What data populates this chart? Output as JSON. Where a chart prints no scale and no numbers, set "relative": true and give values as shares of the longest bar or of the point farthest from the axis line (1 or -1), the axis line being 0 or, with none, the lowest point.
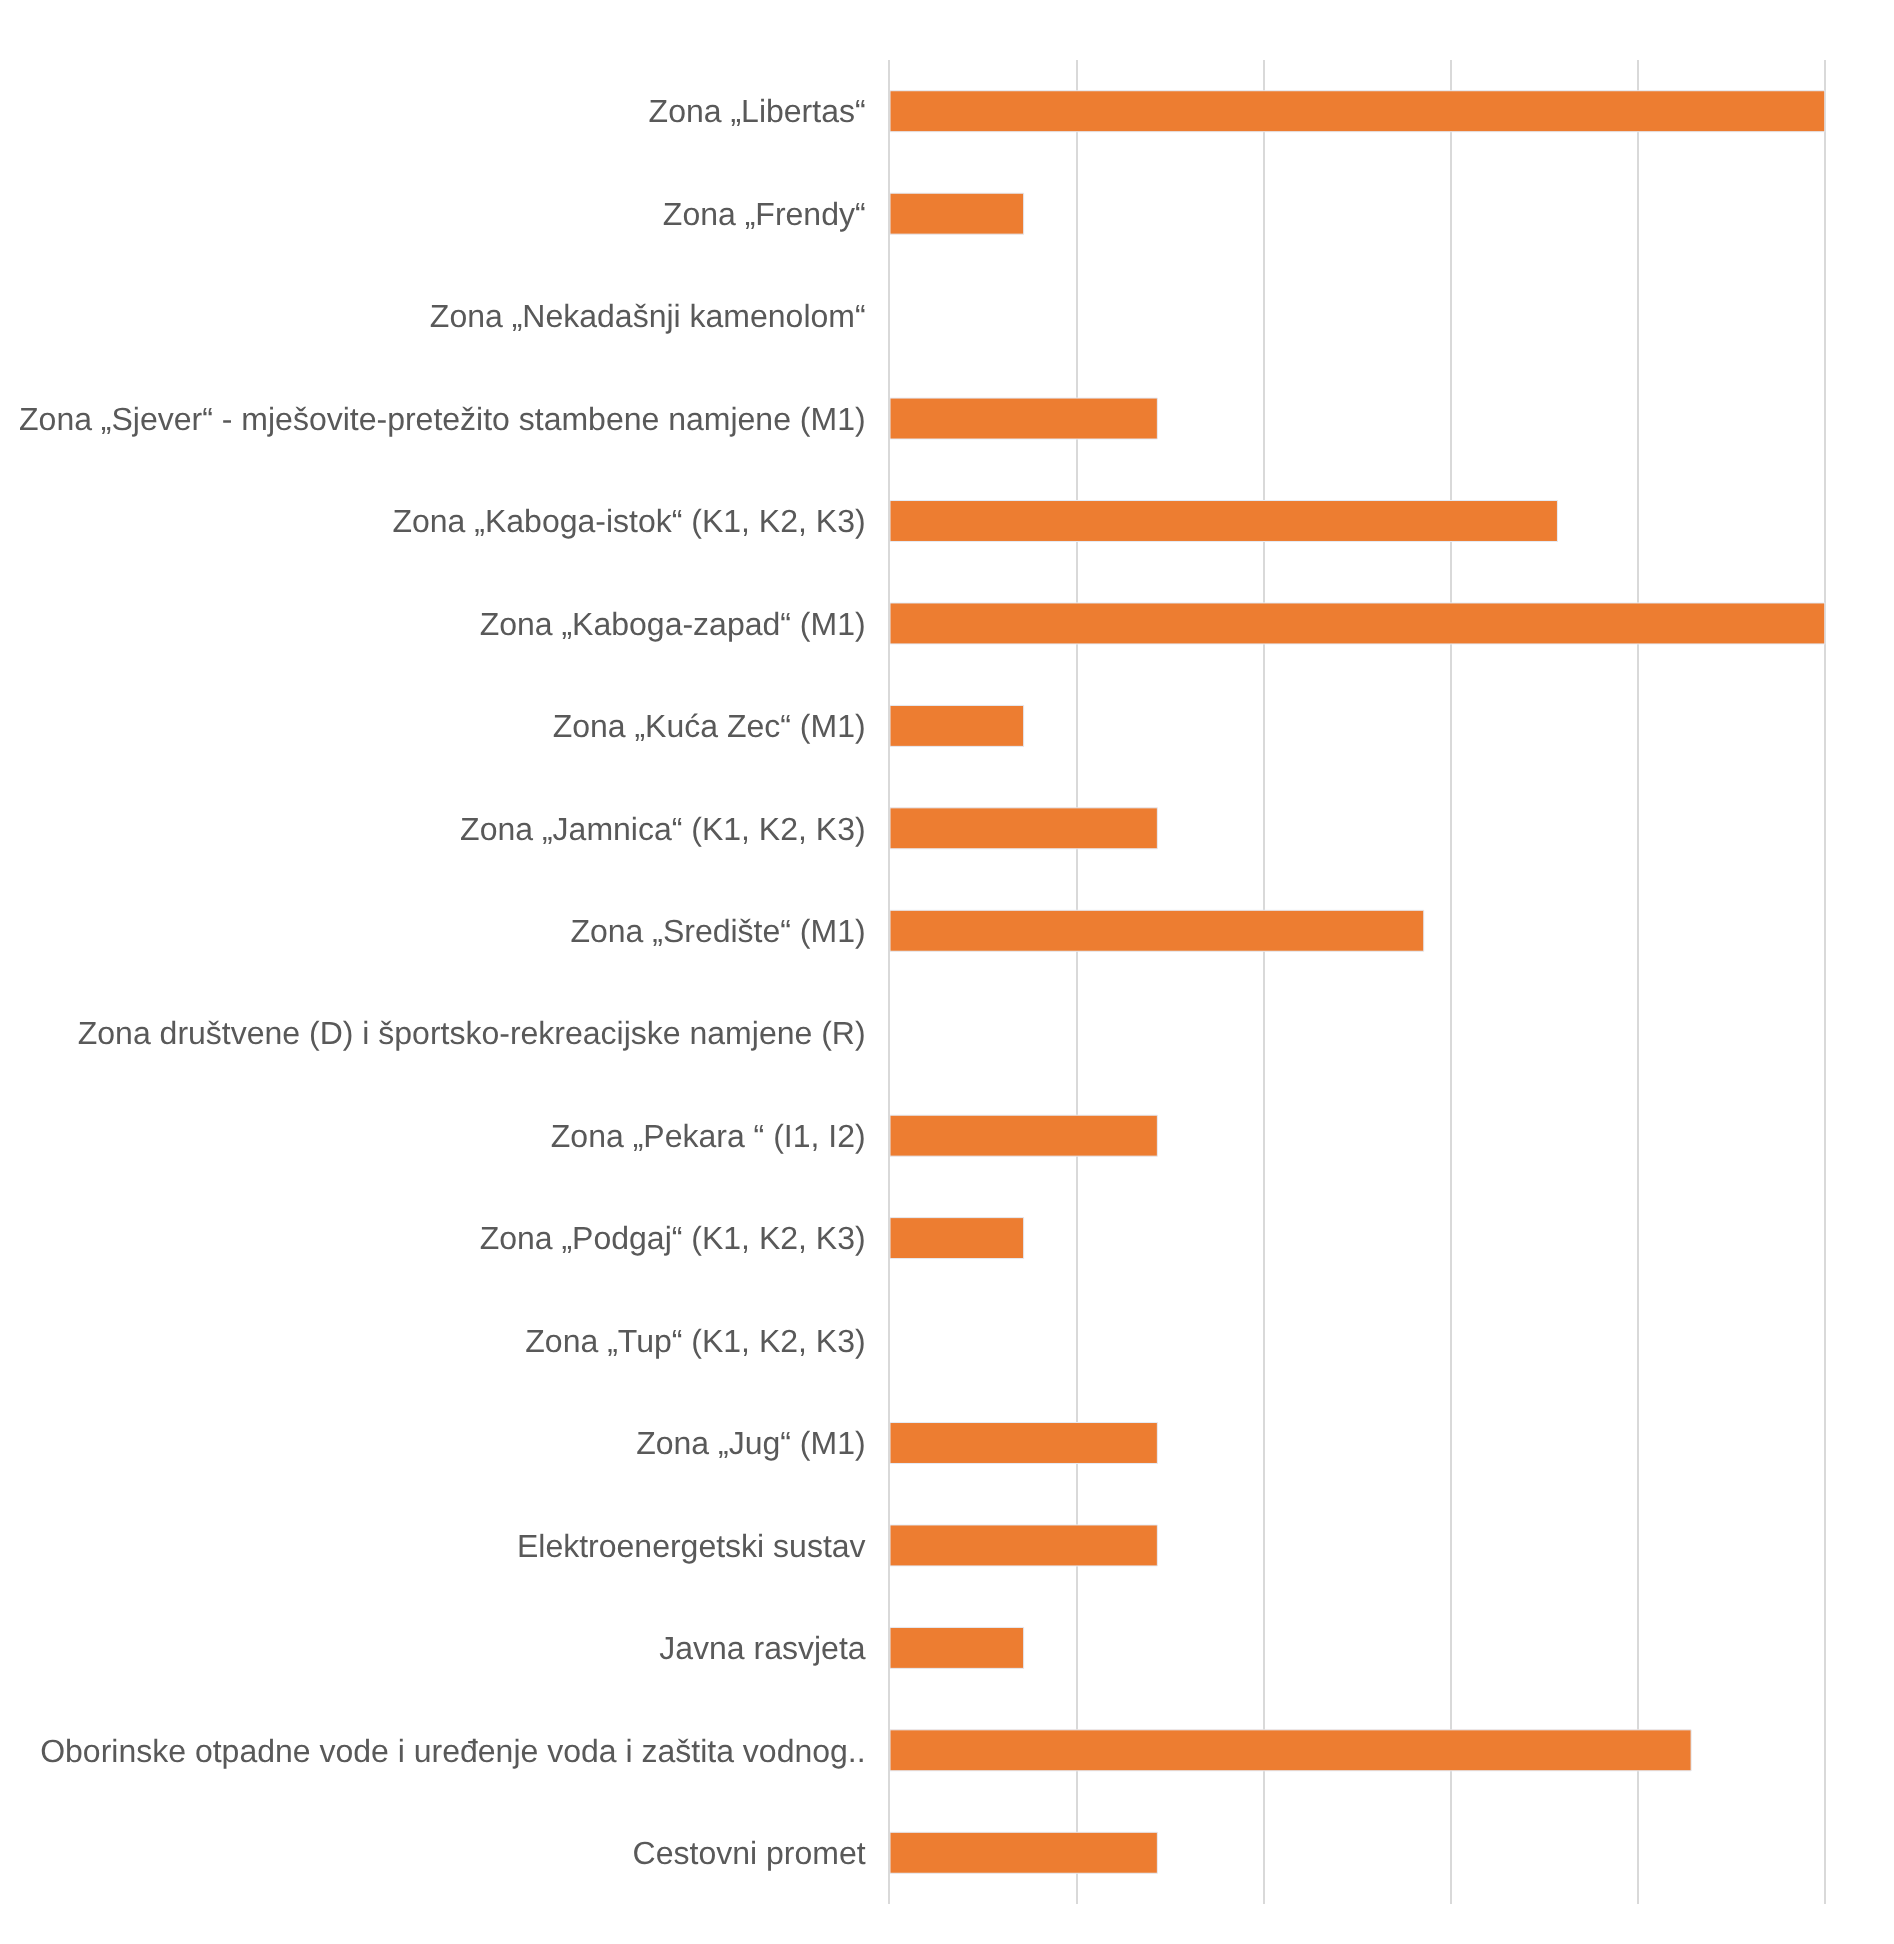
{
  "chart_data": {
    "type": "bar",
    "orientation": "horizontal",
    "relative": true,
    "grid": "x",
    "categories": [
      "Zona „Libertas“",
      "Zona „Frendy“",
      "Zona „Nekadašnji kamenolom“",
      "Zona „Sjever“ - mješovite-pretežito stambene namjene (M1)",
      "Zona „Kaboga-istok“ (K1, K2, K3)",
      "Zona „Kaboga-zapad“ (M1)",
      "Zona „Kuća Zec“ (M1)",
      "Zona „Jamnica“ (K1, K2, K3)",
      "Zona „Središte“ (M1)",
      "Zona društvene (D) i športsko-rekreacijske namjene (R)",
      "Zona „Pekara “ (I1, I2)",
      "Zona „Podgaj“ (K1, K2, K3)",
      "Zona „Tup“ (K1, K2, K3)",
      "Zona „Jug“ (M1)",
      "Elektroenergetski sustav",
      "Javna rasvjeta",
      "Oborinske otpadne vode i uređenje voda i zaštita vodnog..",
      "Cestovni promet"
    ],
    "series": [
      {
        "color": "#ed7d31",
        "values": [
          1,
          0.143,
          null,
          0.286,
          0.714,
          1,
          0.143,
          0.286,
          0.571,
          null,
          0.286,
          0.143,
          null,
          0.286,
          0.286,
          0.143,
          0.857,
          0.286
        ]
      }
    ]
  }
}
